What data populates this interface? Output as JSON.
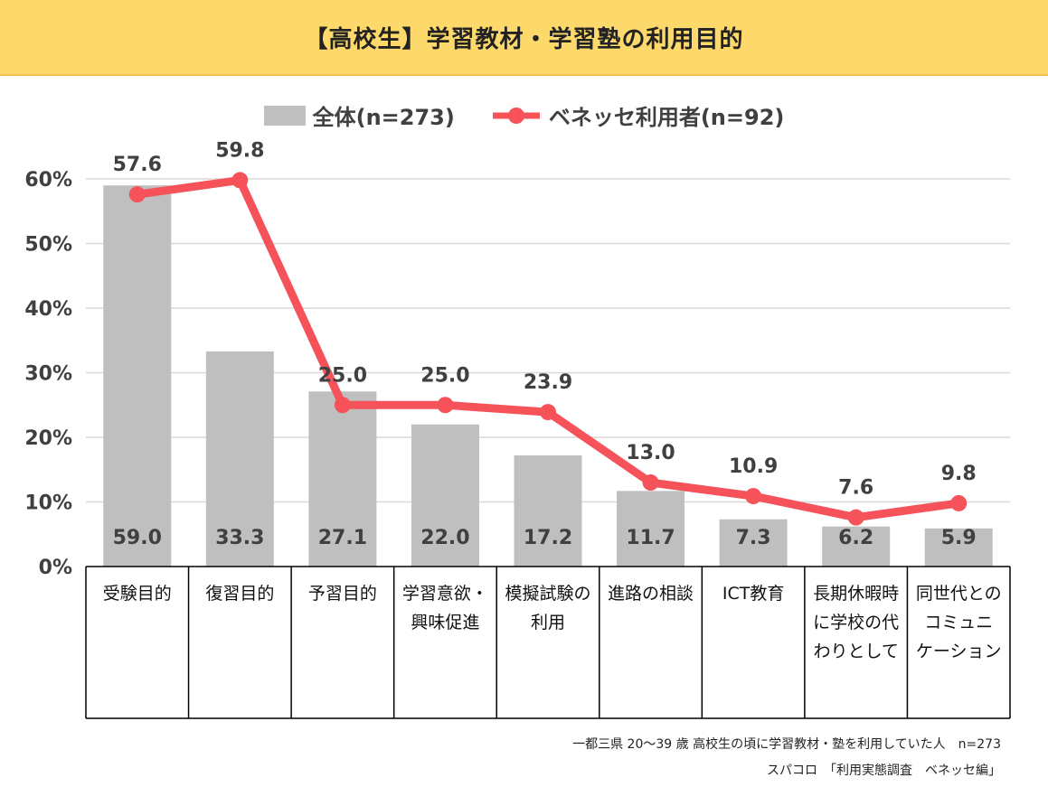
{
  "header": {
    "title": "【高校生】学習教材・学習塾の利用目的"
  },
  "colors": {
    "banner": "#fdd96c",
    "bar": "#bfbfbf",
    "line": "#f5525a",
    "grid": "#d9d9d9"
  },
  "chart_data": {
    "type": "bar",
    "title": "【高校生】学習教材・学習塾の利用目的",
    "categories": [
      [
        "受験目的"
      ],
      [
        "復習目的"
      ],
      [
        "予習目的"
      ],
      [
        "学習意欲・",
        "興味促進"
      ],
      [
        "模擬試験の",
        "利用"
      ],
      [
        "進路の相談"
      ],
      [
        "ICT教育"
      ],
      [
        "長期休暇時",
        "に学校の代",
        "わりとして"
      ],
      [
        "同世代との",
        "コミュニ",
        "ケーション"
      ]
    ],
    "series": [
      {
        "name": "全体(n=273)",
        "type": "bar",
        "values": [
          59.0,
          33.3,
          27.1,
          22.0,
          17.2,
          11.7,
          7.3,
          6.2,
          5.9
        ],
        "labels": [
          "59.0",
          "33.3",
          "27.1",
          "22.0",
          "17.2",
          "11.7",
          "7.3",
          "6.2",
          "5.9"
        ]
      },
      {
        "name": "ベネッセ利用者(n=92)",
        "type": "line",
        "values": [
          57.6,
          59.8,
          25.0,
          25.0,
          23.9,
          13.0,
          10.9,
          7.6,
          9.8
        ],
        "labels": [
          "57.6",
          "59.8",
          "25.0",
          "25.0",
          "23.9",
          "13.0",
          "10.9",
          "7.6",
          "9.8"
        ]
      }
    ],
    "yticks": [
      "0%",
      "10%",
      "20%",
      "30%",
      "40%",
      "50%",
      "60%"
    ],
    "ylim": [
      0,
      60
    ],
    "grid": true,
    "legend": "top-center"
  },
  "source": {
    "line1": "一都三県 20～39 歳 高校生の頃に学習教材・塾を利用していた人　n=273",
    "line2": "スパコロ　「利用実態調査　ベネッセ編」"
  }
}
